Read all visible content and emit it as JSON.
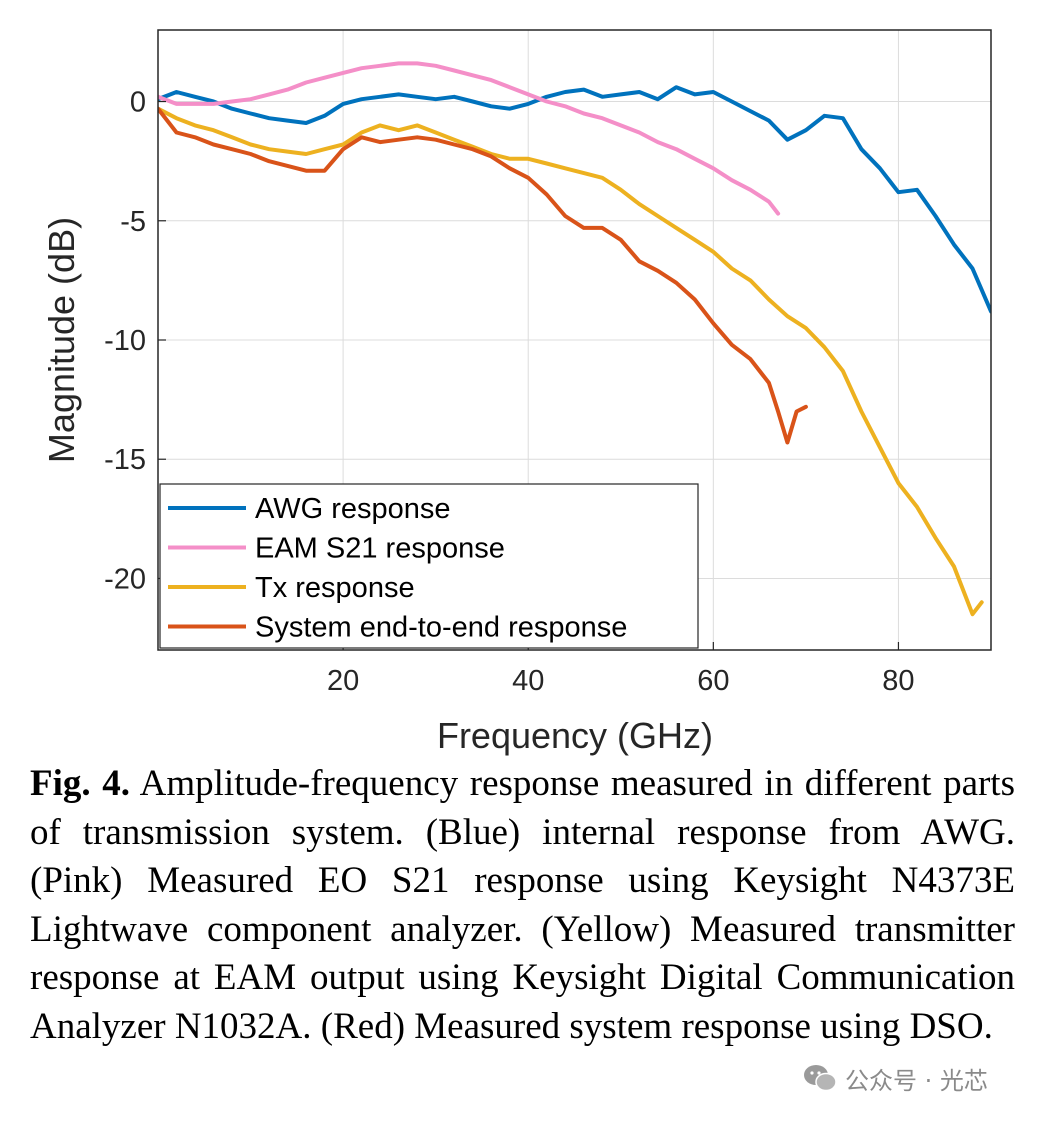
{
  "chart_data": {
    "type": "line",
    "xlabel": "Frequency (GHz)",
    "ylabel": "Magnitude (dB)",
    "xlim": [
      0,
      90
    ],
    "ylim": [
      -23,
      3
    ],
    "xticks": [
      20,
      40,
      60,
      80
    ],
    "yticks": [
      0,
      -5,
      -10,
      -15,
      -20
    ],
    "grid": true,
    "legend_position": "bottom-left",
    "series": [
      {
        "name": "AWG response",
        "color": "#0072BD",
        "x": [
          0,
          2,
          4,
          6,
          8,
          10,
          12,
          14,
          16,
          18,
          20,
          22,
          24,
          26,
          28,
          30,
          32,
          34,
          36,
          38,
          40,
          42,
          44,
          46,
          48,
          50,
          52,
          54,
          56,
          58,
          60,
          62,
          64,
          66,
          68,
          70,
          72,
          74,
          76,
          78,
          80,
          82,
          84,
          86,
          88,
          90
        ],
        "y": [
          0.1,
          0.4,
          0.2,
          0.0,
          -0.3,
          -0.5,
          -0.7,
          -0.8,
          -0.9,
          -0.6,
          -0.1,
          0.1,
          0.2,
          0.3,
          0.2,
          0.1,
          0.2,
          0.0,
          -0.2,
          -0.3,
          -0.1,
          0.2,
          0.4,
          0.5,
          0.2,
          0.3,
          0.4,
          0.1,
          0.6,
          0.3,
          0.4,
          0.0,
          -0.4,
          -0.8,
          -1.6,
          -1.2,
          -0.6,
          -0.7,
          -2.0,
          -2.8,
          -3.8,
          -3.7,
          -4.8,
          -6.0,
          -7.0,
          -8.8
        ]
      },
      {
        "name": "EAM S21 response",
        "color": "#F48FC8",
        "x": [
          0,
          2,
          4,
          6,
          8,
          10,
          12,
          14,
          16,
          18,
          20,
          22,
          24,
          26,
          28,
          30,
          32,
          34,
          36,
          38,
          40,
          42,
          44,
          46,
          48,
          50,
          52,
          54,
          56,
          58,
          60,
          62,
          64,
          66,
          67
        ],
        "y": [
          0.2,
          -0.1,
          -0.1,
          -0.1,
          0.0,
          0.1,
          0.3,
          0.5,
          0.8,
          1.0,
          1.2,
          1.4,
          1.5,
          1.6,
          1.6,
          1.5,
          1.3,
          1.1,
          0.9,
          0.6,
          0.3,
          0.0,
          -0.2,
          -0.5,
          -0.7,
          -1.0,
          -1.3,
          -1.7,
          -2.0,
          -2.4,
          -2.8,
          -3.3,
          -3.7,
          -4.2,
          -4.7
        ]
      },
      {
        "name": "Tx response",
        "color": "#EDB120",
        "x": [
          0,
          2,
          4,
          6,
          8,
          10,
          12,
          14,
          16,
          18,
          20,
          22,
          24,
          26,
          28,
          30,
          32,
          34,
          36,
          38,
          40,
          42,
          44,
          46,
          48,
          50,
          52,
          54,
          56,
          58,
          60,
          62,
          64,
          66,
          68,
          70,
          72,
          74,
          76,
          78,
          80,
          82,
          84,
          86,
          88,
          89
        ],
        "y": [
          -0.3,
          -0.7,
          -1.0,
          -1.2,
          -1.5,
          -1.8,
          -2.0,
          -2.1,
          -2.2,
          -2.0,
          -1.8,
          -1.3,
          -1.0,
          -1.2,
          -1.0,
          -1.3,
          -1.6,
          -1.9,
          -2.2,
          -2.4,
          -2.4,
          -2.6,
          -2.8,
          -3.0,
          -3.2,
          -3.7,
          -4.3,
          -4.8,
          -5.3,
          -5.8,
          -6.3,
          -7.0,
          -7.5,
          -8.3,
          -9.0,
          -9.5,
          -10.3,
          -11.3,
          -13.0,
          -14.5,
          -16.0,
          -17.0,
          -18.3,
          -19.5,
          -21.5,
          -21.0
        ]
      },
      {
        "name": "System end-to-end response",
        "color": "#D95319",
        "x": [
          0,
          2,
          4,
          6,
          8,
          10,
          12,
          14,
          16,
          18,
          20,
          22,
          24,
          26,
          28,
          30,
          32,
          34,
          36,
          38,
          40,
          42,
          44,
          46,
          48,
          50,
          52,
          54,
          56,
          58,
          60,
          62,
          64,
          66,
          67,
          68,
          69,
          70
        ],
        "y": [
          -0.3,
          -1.3,
          -1.5,
          -1.8,
          -2.0,
          -2.2,
          -2.5,
          -2.7,
          -2.9,
          -2.9,
          -2.0,
          -1.5,
          -1.7,
          -1.6,
          -1.5,
          -1.6,
          -1.8,
          -2.0,
          -2.3,
          -2.8,
          -3.2,
          -3.9,
          -4.8,
          -5.3,
          -5.3,
          -5.8,
          -6.7,
          -7.1,
          -7.6,
          -8.3,
          -9.3,
          -10.2,
          -10.8,
          -11.8,
          -13.0,
          -14.3,
          -13.0,
          -12.8
        ]
      }
    ]
  },
  "caption": {
    "label": "Fig. 4.",
    "text": " Amplitude-frequency response measured in different parts of transmission system. (Blue) internal response from AWG. (Pink) Measured EO S21 response using Keysight N4373E Lightwave component analyzer. (Yellow) Measured transmitter response at EAM output using Keysight Digital Communication Analyzer N1032A. (Red) Measured system response using DSO."
  },
  "watermark": {
    "text": "公众号 · 光芯",
    "icon": "wechat-icon",
    "color": "#8a8a8a"
  }
}
